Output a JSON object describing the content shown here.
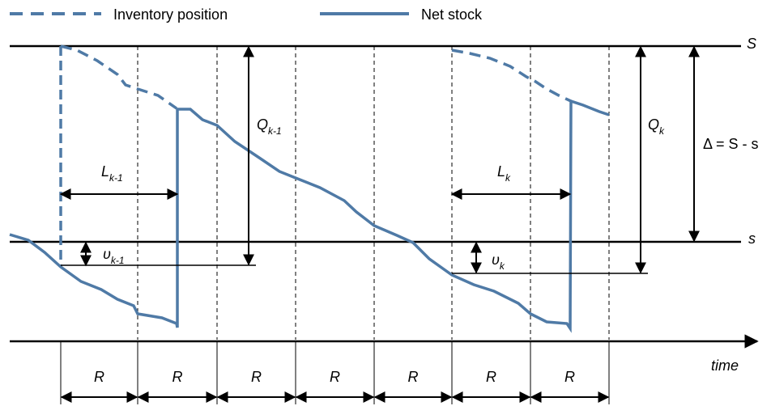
{
  "legend": {
    "inventory_position": "Inventory position",
    "net_stock": "Net stock"
  },
  "levels": {
    "S": "S",
    "s": "s"
  },
  "annotations": {
    "L_prev": {
      "base": "L",
      "sub": "k-1"
    },
    "nu_prev": {
      "base": "υ",
      "sub": "k-1"
    },
    "Q_prev": {
      "base": "Q",
      "sub": "k-1"
    },
    "L_k": {
      "base": "L",
      "sub": "k"
    },
    "nu_k": {
      "base": "υ",
      "sub": "k"
    },
    "Q_k": {
      "base": "Q",
      "sub": "k"
    },
    "delta": "Δ = S - s"
  },
  "periods": [
    "R",
    "R",
    "R",
    "R",
    "R",
    "R",
    "R"
  ],
  "axis_label": "time"
}
